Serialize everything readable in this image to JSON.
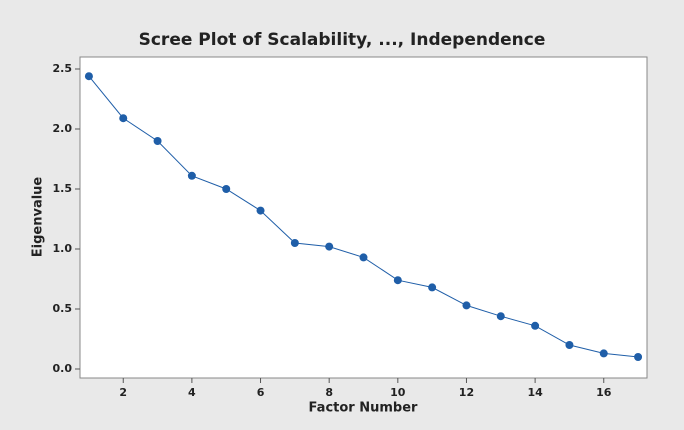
{
  "chart_data": {
    "type": "line",
    "title": "Scree Plot of Scalability, ..., Independence",
    "xlabel": "Factor Number",
    "ylabel": "Eigenvalue",
    "x": [
      1,
      2,
      3,
      4,
      5,
      6,
      7,
      8,
      9,
      10,
      11,
      12,
      13,
      14,
      15,
      16,
      17
    ],
    "series": [
      {
        "color": "#1f5ea8",
        "values": [
          2.44,
          2.09,
          1.9,
          1.61,
          1.5,
          1.32,
          1.05,
          1.02,
          0.93,
          0.74,
          0.68,
          0.53,
          0.44,
          0.36,
          0.2,
          0.13,
          0.1
        ]
      }
    ],
    "xlim": [
      0.74,
      17.26
    ],
    "xticks": [
      2,
      4,
      6,
      8,
      10,
      12,
      14,
      16
    ],
    "ylim": [
      -0.075,
      2.6
    ],
    "yticks": [
      {
        "value": 0,
        "label": "0.0"
      },
      0.5,
      {
        "value": 1,
        "label": "1.0"
      },
      1.5,
      {
        "value": 2,
        "label": "2.0"
      },
      2.5
    ]
  }
}
